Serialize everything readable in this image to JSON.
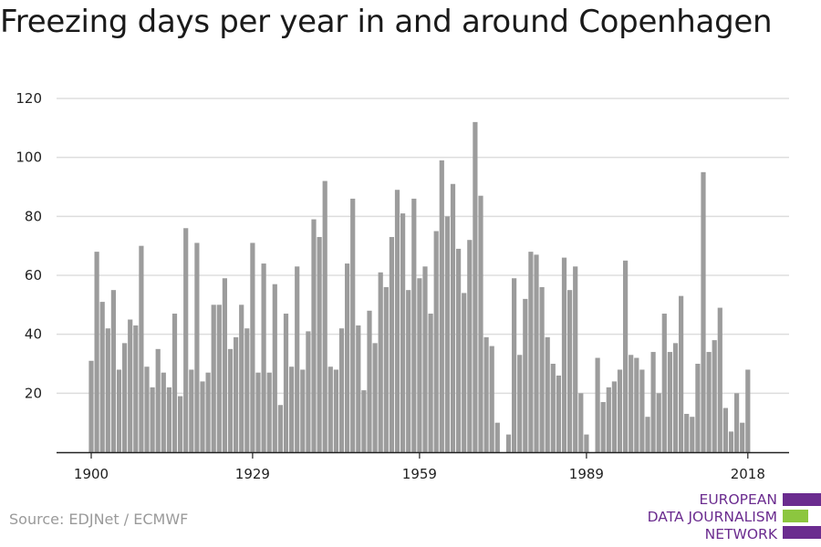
{
  "source": "Source: EDJNet / ECMWF",
  "logo": {
    "line1": "EUROPEAN",
    "line2": "DATA JOURNALISM",
    "line3": "NETWORK",
    "colors": {
      "purple": "#6b2c8f",
      "green": "#8cc63f"
    }
  },
  "colors": {
    "bar": "#9c9c9c",
    "grid": "#dddddd",
    "axis": "#222222"
  },
  "chart_data": {
    "type": "bar",
    "title": "Freezing days per year in and around Copenhagen",
    "xlabel": "",
    "ylabel": "",
    "ylim": [
      0,
      120
    ],
    "yticks": [
      20,
      40,
      60,
      80,
      100,
      120
    ],
    "xticks": [
      1900,
      1929,
      1959,
      1989,
      2018
    ],
    "grid": true,
    "x_start": 1900,
    "values": [
      31,
      68,
      51,
      42,
      55,
      28,
      37,
      45,
      43,
      70,
      29,
      22,
      35,
      27,
      22,
      47,
      19,
      76,
      28,
      71,
      24,
      27,
      50,
      50,
      59,
      35,
      39,
      50,
      42,
      71,
      27,
      64,
      27,
      57,
      16,
      47,
      29,
      63,
      28,
      41,
      79,
      73,
      92,
      29,
      28,
      42,
      64,
      86,
      43,
      21,
      48,
      37,
      61,
      56,
      73,
      89,
      81,
      55,
      86,
      59,
      63,
      47,
      75,
      99,
      80,
      91,
      69,
      54,
      72,
      112,
      87,
      39,
      36,
      10,
      0,
      6,
      59,
      33,
      52,
      68,
      67,
      56,
      39,
      30,
      26,
      66,
      55,
      63,
      20,
      6,
      0,
      32,
      17,
      22,
      24,
      28,
      65,
      33,
      32,
      28,
      12,
      34,
      20,
      47,
      34,
      37,
      53,
      13,
      12,
      30,
      95,
      34,
      38,
      49,
      15,
      7,
      20,
      10,
      28
    ]
  }
}
